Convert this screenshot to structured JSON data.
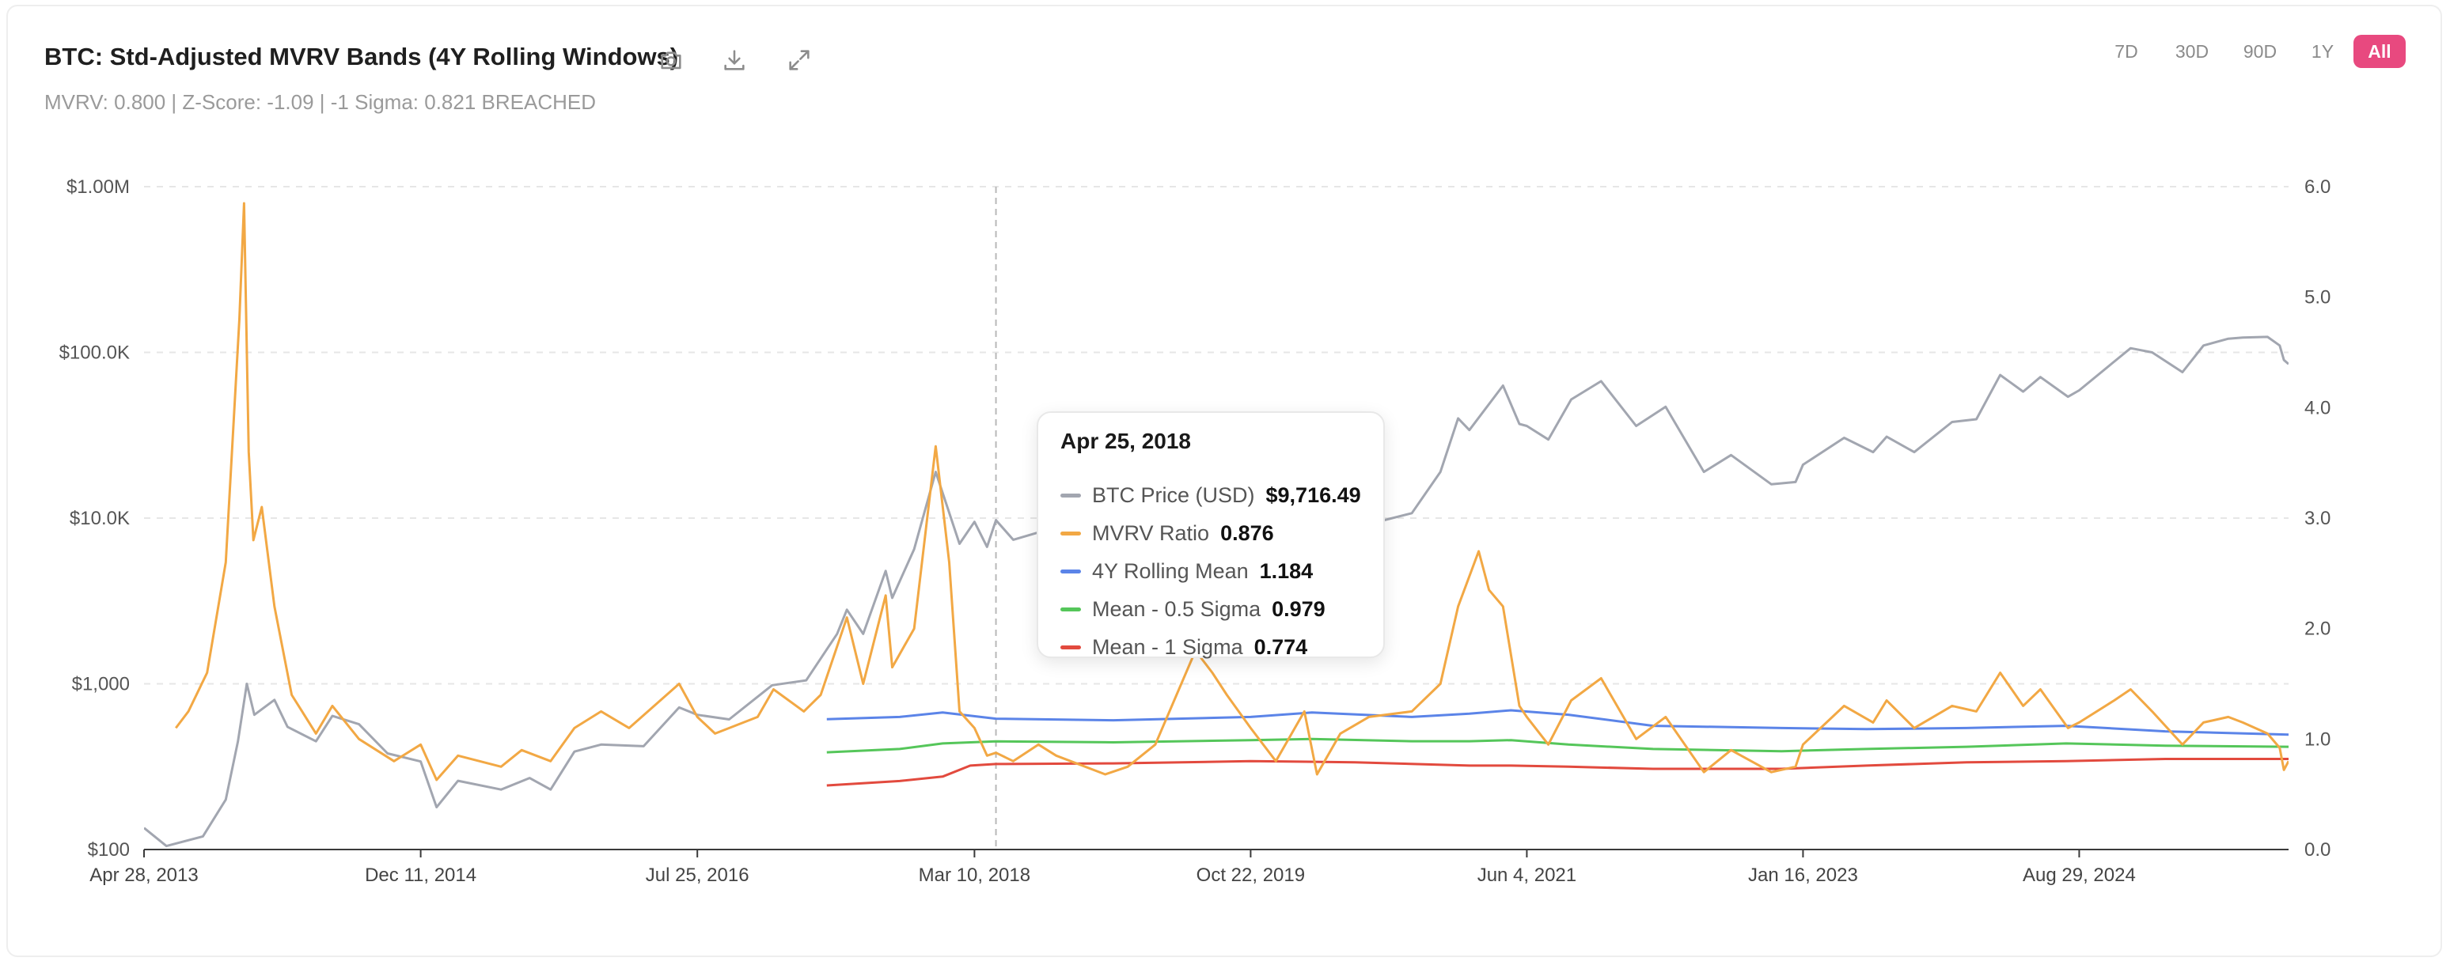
{
  "header": {
    "title": "BTC: Std-Adjusted MVRV Bands (4Y Rolling Windows)",
    "subtitle": "MVRV: 0.800 | Z-Score: -1.09 | -1 Sigma: 0.821 BREACHED",
    "tools": [
      {
        "icon": "camera-icon",
        "label": "Screenshot"
      },
      {
        "icon": "download-icon",
        "label": "Download"
      },
      {
        "icon": "expand-icon",
        "label": "Fullscreen"
      }
    ]
  },
  "ranges": [
    {
      "label": "7D",
      "active": false
    },
    {
      "label": "30D",
      "active": false
    },
    {
      "label": "90D",
      "active": false
    },
    {
      "label": "1Y",
      "active": false
    },
    {
      "label": "All",
      "active": true
    }
  ],
  "colors": {
    "price": "#a2a6b0",
    "mvrv": "#f2a844",
    "mean": "#5b84e8",
    "half_sigma": "#55c65a",
    "one_sigma": "#e24a3e",
    "accent": "#e8497f"
  },
  "tooltip": {
    "date": "Apr 25, 2018",
    "rows": [
      {
        "label": "BTC Price (USD)",
        "value": "$9,716.49",
        "color": "#a2a6b0"
      },
      {
        "label": "MVRV Ratio",
        "value": "0.876",
        "color": "#f2a844"
      },
      {
        "label": "4Y Rolling Mean",
        "value": "1.184",
        "color": "#5b84e8"
      },
      {
        "label": "Mean - 0.5 Sigma",
        "value": "0.979",
        "color": "#55c65a"
      },
      {
        "label": "Mean - 1 Sigma",
        "value": "0.774",
        "color": "#e24a3e"
      }
    ]
  },
  "chart_data": {
    "type": "line",
    "x_ticks": [
      "Apr 28, 2013",
      "Dec 11, 2014",
      "Jul 25, 2016",
      "Mar 10, 2018",
      "Oct 22, 2019",
      "Jun 4, 2021",
      "Jan 16, 2023",
      "Aug 29, 2024"
    ],
    "y_left": {
      "scale": "log",
      "ticks": [
        "$100",
        "$1,000",
        "$10.0K",
        "$100.0K",
        "$1.00M"
      ],
      "range": [
        100,
        1000000
      ]
    },
    "y_right": {
      "scale": "linear",
      "ticks": [
        "0.0",
        "1.0",
        "2.0",
        "3.0",
        "4.0",
        "5.0",
        "6.0"
      ],
      "range": [
        0,
        6
      ]
    },
    "x_range": [
      "2013-04-28",
      "2025-11-20"
    ],
    "crosshair_date": "2018-04-25",
    "grid": true,
    "series": [
      {
        "name": "BTC Price (USD)",
        "axis": "left",
        "points": [
          [
            "2013-04-28",
            135
          ],
          [
            "2013-06-15",
            105
          ],
          [
            "2013-09-01",
            120
          ],
          [
            "2013-10-20",
            200
          ],
          [
            "2013-11-15",
            450
          ],
          [
            "2013-12-04",
            1000
          ],
          [
            "2013-12-20",
            650
          ],
          [
            "2014-02-01",
            800
          ],
          [
            "2014-03-01",
            550
          ],
          [
            "2014-05-01",
            450
          ],
          [
            "2014-06-05",
            640
          ],
          [
            "2014-08-01",
            570
          ],
          [
            "2014-10-01",
            380
          ],
          [
            "2014-12-11",
            340
          ],
          [
            "2015-01-14",
            180
          ],
          [
            "2015-03-01",
            260
          ],
          [
            "2015-06-01",
            230
          ],
          [
            "2015-08-01",
            270
          ],
          [
            "2015-09-15",
            230
          ],
          [
            "2015-11-05",
            390
          ],
          [
            "2016-01-01",
            430
          ],
          [
            "2016-04-01",
            420
          ],
          [
            "2016-06-16",
            720
          ],
          [
            "2016-07-25",
            650
          ],
          [
            "2016-10-01",
            610
          ],
          [
            "2017-01-01",
            980
          ],
          [
            "2017-03-15",
            1050
          ],
          [
            "2017-05-20",
            2000
          ],
          [
            "2017-06-10",
            2800
          ],
          [
            "2017-07-15",
            2000
          ],
          [
            "2017-09-01",
            4800
          ],
          [
            "2017-09-15",
            3300
          ],
          [
            "2017-11-01",
            6500
          ],
          [
            "2017-12-17",
            19000
          ],
          [
            "2018-02-06",
            7000
          ],
          [
            "2018-03-10",
            9500
          ],
          [
            "2018-04-06",
            6700
          ],
          [
            "2018-04-25",
            9716
          ],
          [
            "2018-06-01",
            7400
          ],
          [
            "2018-07-25",
            8200
          ],
          [
            "2018-09-01",
            7000
          ],
          [
            "2018-11-20",
            4300
          ],
          [
            "2018-12-15",
            3300
          ],
          [
            "2019-02-01",
            3500
          ],
          [
            "2019-04-01",
            4200
          ],
          [
            "2019-06-26",
            12900
          ],
          [
            "2019-09-01",
            10000
          ],
          [
            "2019-10-22",
            8200
          ],
          [
            "2019-12-15",
            6900
          ],
          [
            "2020-02-14",
            10300
          ],
          [
            "2020-03-12",
            4900
          ],
          [
            "2020-05-01",
            8800
          ],
          [
            "2020-07-01",
            9200
          ],
          [
            "2020-10-01",
            10700
          ],
          [
            "2020-12-01",
            19000
          ],
          [
            "2021-01-08",
            40000
          ],
          [
            "2021-02-01",
            34000
          ],
          [
            "2021-04-14",
            63000
          ],
          [
            "2021-05-19",
            37000
          ],
          [
            "2021-06-04",
            36000
          ],
          [
            "2021-07-20",
            29800
          ],
          [
            "2021-09-07",
            52000
          ],
          [
            "2021-11-10",
            67000
          ],
          [
            "2022-01-24",
            36000
          ],
          [
            "2022-03-28",
            47000
          ],
          [
            "2022-06-18",
            19000
          ],
          [
            "2022-08-15",
            24000
          ],
          [
            "2022-11-09",
            16000
          ],
          [
            "2022-12-31",
            16500
          ],
          [
            "2023-01-16",
            21000
          ],
          [
            "2023-04-14",
            30500
          ],
          [
            "2023-06-15",
            25000
          ],
          [
            "2023-07-14",
            31000
          ],
          [
            "2023-09-11",
            25000
          ],
          [
            "2023-12-01",
            38000
          ],
          [
            "2024-01-22",
            39500
          ],
          [
            "2024-03-13",
            73000
          ],
          [
            "2024-05-01",
            58000
          ],
          [
            "2024-06-07",
            71000
          ],
          [
            "2024-08-05",
            54000
          ],
          [
            "2024-08-29",
            59000
          ],
          [
            "2024-11-12",
            88000
          ],
          [
            "2024-12-17",
            106000
          ],
          [
            "2025-02-01",
            100000
          ],
          [
            "2025-04-07",
            76000
          ],
          [
            "2025-05-22",
            110000
          ],
          [
            "2025-07-14",
            121000
          ],
          [
            "2025-08-14",
            123000
          ],
          [
            "2025-10-06",
            124000
          ],
          [
            "2025-11-01",
            110000
          ],
          [
            "2025-11-10",
            90000
          ],
          [
            "2025-11-20",
            85000
          ]
        ]
      },
      {
        "name": "MVRV Ratio",
        "axis": "right",
        "points": [
          [
            "2013-07-05",
            1.1
          ],
          [
            "2013-08-01",
            1.25
          ],
          [
            "2013-09-10",
            1.6
          ],
          [
            "2013-10-20",
            2.6
          ],
          [
            "2013-11-18",
            4.8
          ],
          [
            "2013-11-28",
            5.85
          ],
          [
            "2013-12-08",
            3.6
          ],
          [
            "2013-12-18",
            2.8
          ],
          [
            "2014-01-05",
            3.1
          ],
          [
            "2014-02-01",
            2.2
          ],
          [
            "2014-03-10",
            1.4
          ],
          [
            "2014-05-01",
            1.05
          ],
          [
            "2014-06-05",
            1.3
          ],
          [
            "2014-08-01",
            1.0
          ],
          [
            "2014-10-15",
            0.8
          ],
          [
            "2014-12-11",
            0.95
          ],
          [
            "2015-01-14",
            0.63
          ],
          [
            "2015-03-01",
            0.85
          ],
          [
            "2015-06-01",
            0.75
          ],
          [
            "2015-07-15",
            0.9
          ],
          [
            "2015-09-15",
            0.8
          ],
          [
            "2015-11-05",
            1.1
          ],
          [
            "2016-01-01",
            1.25
          ],
          [
            "2016-03-01",
            1.1
          ],
          [
            "2016-06-16",
            1.5
          ],
          [
            "2016-07-25",
            1.2
          ],
          [
            "2016-09-01",
            1.05
          ],
          [
            "2016-12-01",
            1.2
          ],
          [
            "2017-01-04",
            1.45
          ],
          [
            "2017-03-10",
            1.25
          ],
          [
            "2017-04-15",
            1.4
          ],
          [
            "2017-06-10",
            2.1
          ],
          [
            "2017-07-15",
            1.5
          ],
          [
            "2017-09-01",
            2.3
          ],
          [
            "2017-09-15",
            1.65
          ],
          [
            "2017-11-01",
            2.0
          ],
          [
            "2017-12-17",
            3.65
          ],
          [
            "2018-01-15",
            2.6
          ],
          [
            "2018-02-06",
            1.25
          ],
          [
            "2018-03-10",
            1.1
          ],
          [
            "2018-04-06",
            0.85
          ],
          [
            "2018-04-25",
            0.876
          ],
          [
            "2018-06-01",
            0.8
          ],
          [
            "2018-07-25",
            0.95
          ],
          [
            "2018-09-01",
            0.85
          ],
          [
            "2018-11-20",
            0.72
          ],
          [
            "2018-12-15",
            0.68
          ],
          [
            "2019-02-01",
            0.75
          ],
          [
            "2019-04-01",
            0.95
          ],
          [
            "2019-06-26",
            1.8
          ],
          [
            "2019-08-01",
            1.6
          ],
          [
            "2019-09-01",
            1.4
          ],
          [
            "2019-10-22",
            1.1
          ],
          [
            "2019-12-15",
            0.8
          ],
          [
            "2020-02-14",
            1.25
          ],
          [
            "2020-03-12",
            0.68
          ],
          [
            "2020-05-01",
            1.05
          ],
          [
            "2020-07-01",
            1.2
          ],
          [
            "2020-10-01",
            1.25
          ],
          [
            "2020-12-01",
            1.5
          ],
          [
            "2021-01-08",
            2.2
          ],
          [
            "2021-02-21",
            2.7
          ],
          [
            "2021-03-15",
            2.35
          ],
          [
            "2021-04-14",
            2.2
          ],
          [
            "2021-05-19",
            1.3
          ],
          [
            "2021-06-04",
            1.2
          ],
          [
            "2021-07-20",
            0.95
          ],
          [
            "2021-09-07",
            1.35
          ],
          [
            "2021-11-10",
            1.55
          ],
          [
            "2022-01-24",
            1.0
          ],
          [
            "2022-03-28",
            1.2
          ],
          [
            "2022-06-18",
            0.7
          ],
          [
            "2022-08-15",
            0.9
          ],
          [
            "2022-11-09",
            0.7
          ],
          [
            "2022-12-31",
            0.75
          ],
          [
            "2023-01-16",
            0.95
          ],
          [
            "2023-04-14",
            1.3
          ],
          [
            "2023-06-15",
            1.15
          ],
          [
            "2023-07-14",
            1.35
          ],
          [
            "2023-09-11",
            1.1
          ],
          [
            "2023-12-01",
            1.3
          ],
          [
            "2024-01-22",
            1.25
          ],
          [
            "2024-03-13",
            1.6
          ],
          [
            "2024-05-01",
            1.3
          ],
          [
            "2024-06-07",
            1.45
          ],
          [
            "2024-08-05",
            1.1
          ],
          [
            "2024-08-29",
            1.15
          ],
          [
            "2024-11-12",
            1.35
          ],
          [
            "2024-12-17",
            1.45
          ],
          [
            "2025-02-01",
            1.25
          ],
          [
            "2025-04-07",
            0.95
          ],
          [
            "2025-05-22",
            1.15
          ],
          [
            "2025-07-14",
            1.2
          ],
          [
            "2025-08-14",
            1.15
          ],
          [
            "2025-10-06",
            1.05
          ],
          [
            "2025-11-01",
            0.92
          ],
          [
            "2025-11-10",
            0.72
          ],
          [
            "2025-11-20",
            0.8
          ]
        ]
      },
      {
        "name": "4Y Rolling Mean",
        "axis": "right",
        "points": [
          [
            "2017-04-28",
            1.18
          ],
          [
            "2017-10-01",
            1.2
          ],
          [
            "2018-01-01",
            1.24
          ],
          [
            "2018-04-25",
            1.184
          ],
          [
            "2019-01-01",
            1.17
          ],
          [
            "2019-10-22",
            1.2
          ],
          [
            "2020-03-01",
            1.24
          ],
          [
            "2020-10-01",
            1.2
          ],
          [
            "2021-02-01",
            1.23
          ],
          [
            "2021-05-01",
            1.26
          ],
          [
            "2021-09-01",
            1.22
          ],
          [
            "2022-03-01",
            1.12
          ],
          [
            "2022-12-01",
            1.1
          ],
          [
            "2023-06-01",
            1.09
          ],
          [
            "2024-01-01",
            1.1
          ],
          [
            "2024-08-01",
            1.12
          ],
          [
            "2025-03-01",
            1.07
          ],
          [
            "2025-11-20",
            1.04
          ]
        ]
      },
      {
        "name": "Mean - 0.5 Sigma",
        "axis": "right",
        "points": [
          [
            "2017-04-28",
            0.88
          ],
          [
            "2017-10-01",
            0.91
          ],
          [
            "2018-01-01",
            0.96
          ],
          [
            "2018-04-25",
            0.979
          ],
          [
            "2019-01-01",
            0.97
          ],
          [
            "2019-10-22",
            0.99
          ],
          [
            "2020-03-01",
            1.0
          ],
          [
            "2020-10-01",
            0.98
          ],
          [
            "2021-02-01",
            0.98
          ],
          [
            "2021-05-01",
            0.99
          ],
          [
            "2021-09-01",
            0.95
          ],
          [
            "2022-03-01",
            0.91
          ],
          [
            "2022-12-01",
            0.89
          ],
          [
            "2023-06-01",
            0.91
          ],
          [
            "2024-01-01",
            0.93
          ],
          [
            "2024-08-01",
            0.96
          ],
          [
            "2025-03-01",
            0.94
          ],
          [
            "2025-11-20",
            0.93
          ]
        ]
      },
      {
        "name": "Mean - 1 Sigma",
        "axis": "right",
        "points": [
          [
            "2017-04-28",
            0.58
          ],
          [
            "2017-10-01",
            0.62
          ],
          [
            "2018-01-01",
            0.66
          ],
          [
            "2018-03-01",
            0.76
          ],
          [
            "2018-04-25",
            0.774
          ],
          [
            "2019-01-01",
            0.78
          ],
          [
            "2019-10-22",
            0.8
          ],
          [
            "2020-06-01",
            0.79
          ],
          [
            "2021-02-01",
            0.76
          ],
          [
            "2021-05-01",
            0.76
          ],
          [
            "2021-09-01",
            0.75
          ],
          [
            "2022-03-01",
            0.73
          ],
          [
            "2022-12-01",
            0.73
          ],
          [
            "2023-06-01",
            0.76
          ],
          [
            "2024-01-01",
            0.79
          ],
          [
            "2024-08-01",
            0.8
          ],
          [
            "2025-03-01",
            0.82
          ],
          [
            "2025-11-20",
            0.82
          ]
        ]
      }
    ]
  }
}
